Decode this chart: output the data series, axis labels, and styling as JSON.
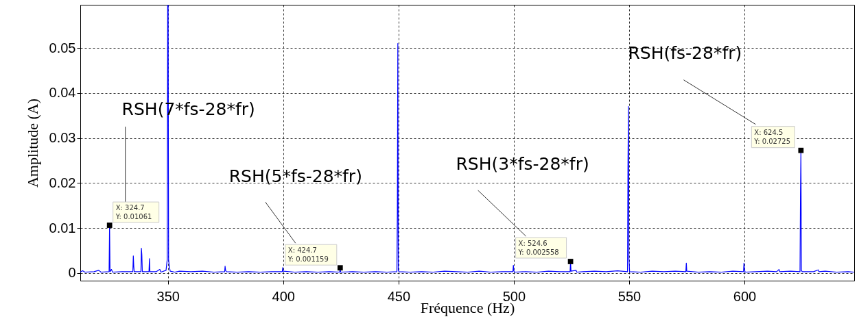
{
  "chart_data": {
    "type": "line",
    "xlabel": "Fréquence (Hz)",
    "ylabel": "Amplitude (A)",
    "xlim": [
      312,
      647.6
    ],
    "ylim": [
      -0.0017,
      0.0596
    ],
    "xticks": [
      350,
      400,
      450,
      500,
      550,
      600
    ],
    "yticks": [
      0,
      0.01,
      0.02,
      0.03,
      0.04,
      0.05
    ],
    "grid": true,
    "marker": "none",
    "line_style": "solid",
    "series": [
      {
        "color": "#0000ff",
        "x": [
          312,
          313,
          314,
          318,
          320,
          321,
          324.5,
          324.7,
          324.9,
          325.5,
          326,
          330,
          334.8,
          335,
          335.2,
          335.4,
          338.3,
          338.5,
          338.7,
          338.9,
          341.8,
          342,
          342.2,
          345,
          346.5,
          347,
          349.2,
          349.7,
          349.9,
          350.1,
          350.3,
          350.6,
          351,
          353,
          355,
          360,
          365,
          370,
          374.6,
          374.8,
          375,
          375.3,
          380,
          385,
          390,
          395,
          399.6,
          399.8,
          400,
          405,
          410,
          415,
          420,
          424.5,
          424.7,
          424.9,
          430,
          435,
          440,
          445,
          449.3,
          449.5,
          449.7,
          449.9,
          450.2,
          455,
          460,
          465,
          470,
          475,
          480,
          485,
          490,
          495,
          499.6,
          499.8,
          500,
          500.3,
          505,
          510,
          515,
          520,
          524.4,
          524.6,
          524.8,
          527,
          527.3,
          530,
          535,
          540,
          545,
          549.3,
          549.5,
          549.7,
          549.9,
          550.2,
          555,
          560,
          565,
          570,
          574.6,
          574.8,
          575,
          580,
          585,
          590,
          595,
          599.6,
          599.8,
          600,
          600.3,
          605,
          610,
          614,
          615,
          615.3,
          620,
          624.1,
          624.3,
          624.5,
          624.7,
          625,
          630,
          632,
          632.3,
          635,
          640,
          645,
          647.5
        ],
        "values": [
          0.0002,
          0.0005,
          0.0002,
          0.0003,
          0.0006,
          0.0002,
          0.0003,
          0.01061,
          0.0003,
          0.0008,
          0.0002,
          0.0003,
          0.0003,
          0.0038,
          0.0015,
          0.0003,
          0.0003,
          0.0055,
          0.004,
          0.0003,
          0.0003,
          0.0032,
          0.0003,
          0.0003,
          0.0008,
          0.0002,
          0.0006,
          0.003,
          0.0595,
          0.0595,
          0.003,
          0.0015,
          0.0004,
          0.0002,
          0.0004,
          0.0003,
          0.0004,
          0.0002,
          0.0003,
          0.0015,
          0.0006,
          0.0003,
          0.0002,
          0.0003,
          0.0002,
          0.0003,
          0.0003,
          0.0012,
          0.0004,
          0.0002,
          0.0003,
          0.0002,
          0.0003,
          0.0002,
          0.001159,
          0.0002,
          0.0003,
          0.0002,
          0.0003,
          0.0002,
          0.0003,
          0.014,
          0.051,
          0.0006,
          0.0003,
          0.0002,
          0.0003,
          0.0002,
          0.0004,
          0.0003,
          0.0002,
          0.0004,
          0.0002,
          0.0003,
          0.0003,
          0.0017,
          0.0005,
          0.0002,
          0.0003,
          0.0002,
          0.0004,
          0.0003,
          0.0003,
          0.002558,
          0.0004,
          0.0006,
          0.0002,
          0.0003,
          0.0004,
          0.0003,
          0.0005,
          0.0003,
          0.024,
          0.037,
          0.0035,
          0.0003,
          0.0002,
          0.0004,
          0.0003,
          0.0004,
          0.0003,
          0.0022,
          0.0004,
          0.0002,
          0.0003,
          0.0002,
          0.0004,
          0.0003,
          0.0022,
          0.0008,
          0.0002,
          0.0003,
          0.0004,
          0.0003,
          0.0008,
          0.0003,
          0.0004,
          0.0003,
          0.0175,
          0.02725,
          0.0006,
          0.0003,
          0.0003,
          0.0007,
          0.0003,
          0.0004,
          0.0002,
          0.0003,
          0.0002
        ]
      }
    ],
    "annotations": [
      "RSH(7*fs-28*fr)",
      {
        "text": "X: 324.7\nY: 0.01061",
        "x": 324.7,
        "y": 0.01061
      },
      "RSH(5*fs-28*fr)",
      {
        "text": "X: 424.7\nY: 0.001159",
        "x": 424.7,
        "y": 0.001159
      },
      "RSH(3*fs-28*fr)",
      {
        "text": "X: 524.6\nY: 0.002558",
        "x": 524.6,
        "y": 0.002558
      },
      "RSH(fs-28*fr)",
      {
        "text": "X: 624.5\nY: 0.02725",
        "x": 624.5,
        "y": 0.02725
      }
    ]
  }
}
